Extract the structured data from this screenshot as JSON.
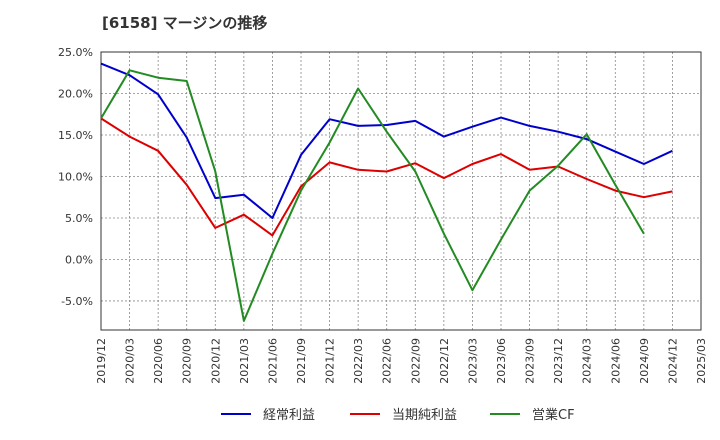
{
  "chart_data": {
    "type": "line",
    "title": "[6158]  マージンの推移",
    "x": [
      "2019/12",
      "2020/03",
      "2020/06",
      "2020/09",
      "2020/12",
      "2021/03",
      "2021/06",
      "2021/09",
      "2021/12",
      "2022/03",
      "2022/06",
      "2022/09",
      "2022/12",
      "2023/03",
      "2023/06",
      "2023/09",
      "2023/12",
      "2024/03",
      "2024/06",
      "2024/09",
      "2024/12",
      "2025/03"
    ],
    "y_ticks": [
      "25.0%",
      "20.0%",
      "15.0%",
      "10.0%",
      "5.0%",
      "0.0%",
      "-5.0%"
    ],
    "ylim": [
      -8.5,
      25
    ],
    "grid": true,
    "legend_position": "bottom",
    "series": [
      {
        "name": "経常利益",
        "color": "#0000cc",
        "values": [
          23.6,
          22.2,
          19.9,
          14.7,
          7.4,
          7.8,
          5.0,
          12.6,
          16.9,
          16.1,
          16.2,
          16.7,
          14.8,
          16.0,
          17.1,
          16.1,
          15.4,
          14.5,
          13.0,
          11.5,
          13.1,
          null
        ]
      },
      {
        "name": "当期純利益",
        "color": "#dd0000",
        "values": [
          17.0,
          14.8,
          13.1,
          9.0,
          3.8,
          5.4,
          2.9,
          8.8,
          11.7,
          10.8,
          10.6,
          11.6,
          9.8,
          11.5,
          12.7,
          10.8,
          11.2,
          9.7,
          8.3,
          7.5,
          8.2,
          null
        ]
      },
      {
        "name": "営業CF",
        "color": "#228b22",
        "values": [
          17.0,
          22.8,
          21.9,
          21.5,
          10.6,
          -7.4,
          0.7,
          8.3,
          14.1,
          20.6,
          15.4,
          10.6,
          3.1,
          -3.7,
          2.4,
          8.3,
          11.3,
          15.1,
          9.0,
          3.1,
          null,
          null
        ]
      }
    ]
  }
}
